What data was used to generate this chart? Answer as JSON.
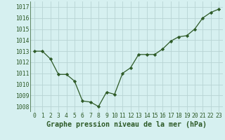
{
  "x": [
    0,
    1,
    2,
    3,
    4,
    5,
    6,
    7,
    8,
    9,
    10,
    11,
    12,
    13,
    14,
    15,
    16,
    17,
    18,
    19,
    20,
    21,
    22,
    23
  ],
  "y": [
    1013.0,
    1013.0,
    1012.3,
    1010.9,
    1010.9,
    1010.3,
    1008.5,
    1008.4,
    1008.0,
    1009.3,
    1009.1,
    1011.0,
    1011.5,
    1012.7,
    1012.7,
    1012.7,
    1013.2,
    1013.9,
    1014.3,
    1014.4,
    1015.0,
    1016.0,
    1016.5,
    1016.8
  ],
  "ylim": [
    1007.5,
    1017.5
  ],
  "yticks": [
    1008,
    1009,
    1010,
    1011,
    1012,
    1013,
    1014,
    1015,
    1016,
    1017
  ],
  "xticks": [
    0,
    1,
    2,
    3,
    4,
    5,
    6,
    7,
    8,
    9,
    10,
    11,
    12,
    13,
    14,
    15,
    16,
    17,
    18,
    19,
    20,
    21,
    22,
    23
  ],
  "xlabel": "Graphe pression niveau de la mer (hPa)",
  "line_color": "#2d5a27",
  "marker": "D",
  "marker_size": 2.2,
  "bg_color": "#d6f0f0",
  "grid_color": "#b8d4d4",
  "tick_label_fontsize": 5.8,
  "xlabel_fontsize": 7.2,
  "linewidth": 0.9
}
